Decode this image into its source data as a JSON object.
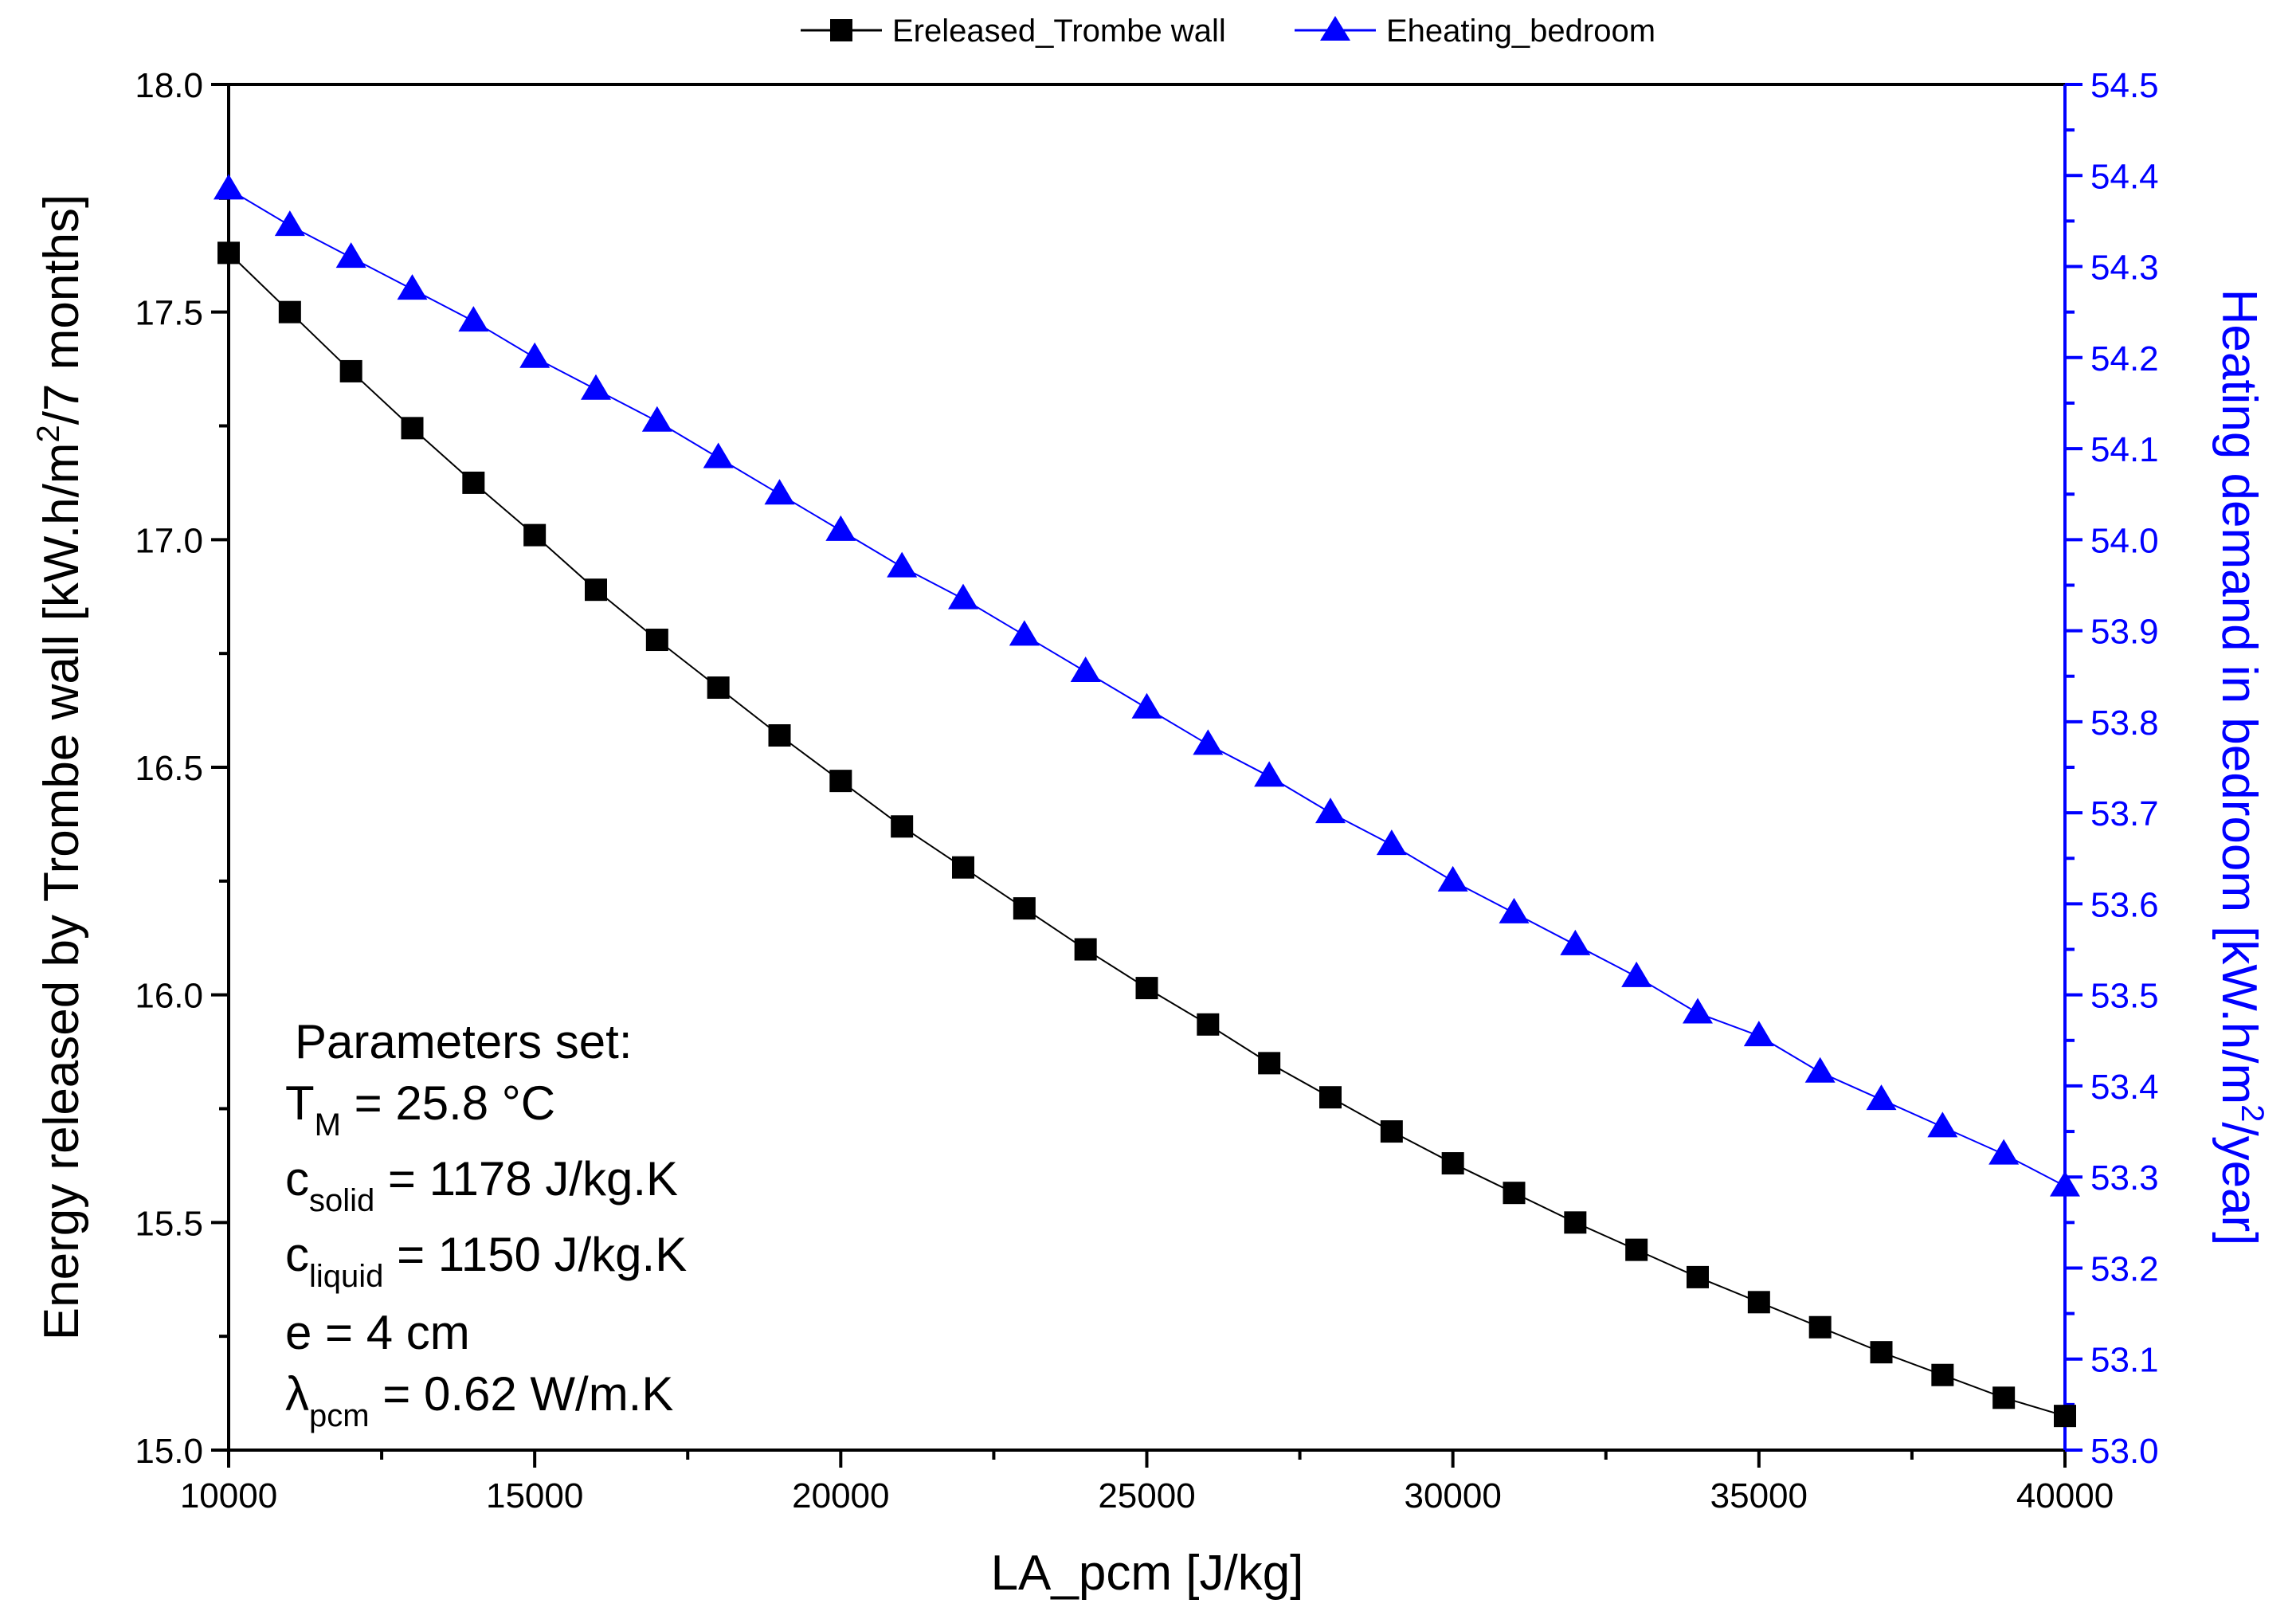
{
  "chart_data": {
    "type": "line",
    "legend": {
      "position": "top-center",
      "entries": [
        "Ereleased_Trombe wall",
        "Eheating_bedroom"
      ]
    },
    "xlabel": "LA_pcm [J/kg]",
    "xlim": [
      10000,
      40000
    ],
    "xticks": [
      "10000",
      "15000",
      "20000",
      "25000",
      "30000",
      "35000",
      "40000"
    ],
    "y_left": {
      "label_parts": [
        "Energy released by Trombe wall [kW.h/m",
        "2",
        "/7 months]"
      ],
      "lim": [
        15.0,
        18.0
      ],
      "ticks": [
        "15.0",
        "15.5",
        "16.0",
        "16.5",
        "17.0",
        "17.5",
        "18.0"
      ]
    },
    "y_right": {
      "label_parts": [
        "Heating demand in bedroom [kW.h/m",
        "2",
        "/year]"
      ],
      "lim": [
        53.0,
        54.5
      ],
      "ticks": [
        "53.0",
        "53.1",
        "53.2",
        "53.3",
        "53.4",
        "53.5",
        "53.6",
        "53.7",
        "53.8",
        "53.9",
        "54.0",
        "54.1",
        "54.2",
        "54.3",
        "54.4",
        "54.5"
      ],
      "color": "#0000ff"
    },
    "x": [
      10000,
      11000,
      12000,
      13000,
      14000,
      15000,
      16000,
      17000,
      18000,
      19000,
      20000,
      21000,
      22000,
      23000,
      24000,
      25000,
      26000,
      27000,
      28000,
      29000,
      30000,
      31000,
      32000,
      33000,
      34000,
      35000,
      36000,
      37000,
      38000,
      39000,
      40000
    ],
    "series": [
      {
        "name": "Ereleased_Trombe wall",
        "axis": "left",
        "color": "#000000",
        "marker": "square",
        "values": [
          17.63,
          17.5,
          17.37,
          17.245,
          17.125,
          17.01,
          16.89,
          16.78,
          16.675,
          16.57,
          16.47,
          16.37,
          16.28,
          16.19,
          16.1,
          16.015,
          15.935,
          15.85,
          15.775,
          15.7,
          15.63,
          15.565,
          15.5,
          15.44,
          15.38,
          15.325,
          15.27,
          15.215,
          15.165,
          15.115,
          15.075
        ]
      },
      {
        "name": "Eheating_bedroom",
        "axis": "right",
        "color": "#0000ff",
        "marker": "triangle",
        "values": [
          54.385,
          54.345,
          54.31,
          54.275,
          54.24,
          54.2,
          54.165,
          54.13,
          54.09,
          54.05,
          54.01,
          53.97,
          53.935,
          53.895,
          53.855,
          53.815,
          53.775,
          53.74,
          53.7,
          53.665,
          53.625,
          53.59,
          53.555,
          53.52,
          53.48,
          53.455,
          53.415,
          53.385,
          53.355,
          53.325,
          53.29
        ]
      }
    ],
    "annotation": {
      "title": "Parameters set:",
      "lines": [
        {
          "sym": "T",
          "sub": "M",
          "rest": " = 25.8 °C"
        },
        {
          "sym": "c",
          "sub": "solid",
          "rest": " = 1178 J/kg.K"
        },
        {
          "sym": "c",
          "sub": "liquid",
          "rest": " = 1150 J/kg.K"
        },
        {
          "sym": "e = 4 cm",
          "sub": "",
          "rest": ""
        },
        {
          "sym": "λ",
          "sub": "pcm",
          "rest": " = 0.62 W/m.K"
        }
      ]
    }
  }
}
